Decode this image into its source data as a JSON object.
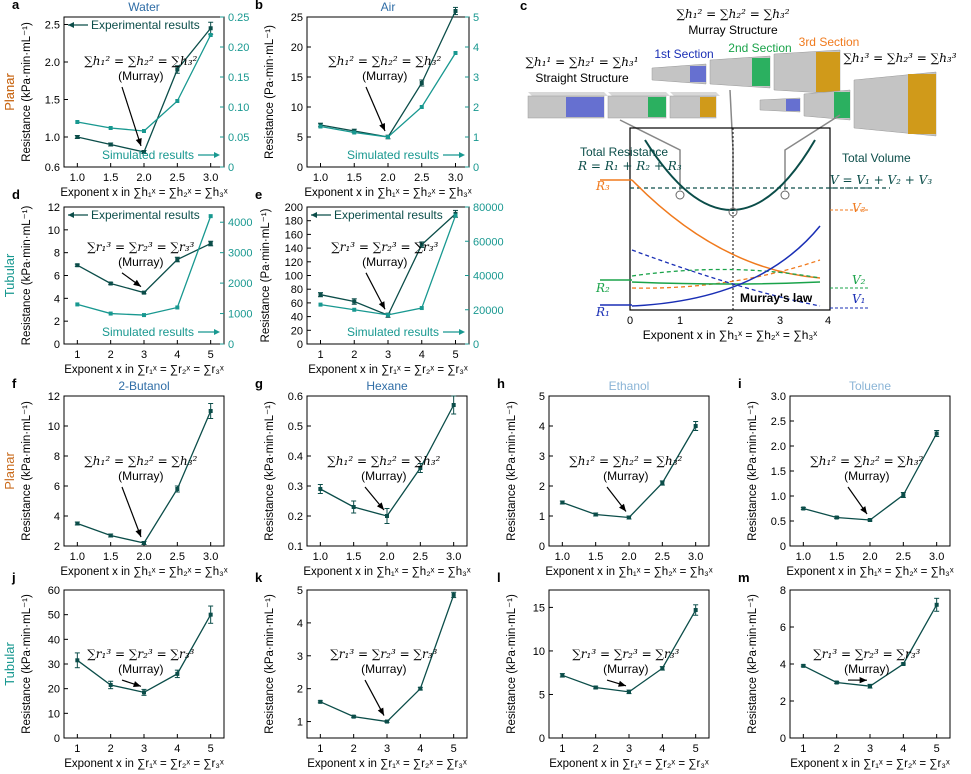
{
  "colors": {
    "dark": "#0b4d49",
    "light": "#189890",
    "planar": "#c96b1c",
    "tubular": "#189890",
    "title_blue": "#2f6da6",
    "title_light": "#8ab4d6",
    "orange": "#f07a1d",
    "green": "#1aa34a",
    "blue": "#1a2fb5",
    "darkgreen": "#0b4d49",
    "gray": "#888888"
  },
  "side_labels": {
    "planar": "Planar",
    "tubular": "Tubular"
  },
  "common": {
    "ylabel_kpa": "Resistance (kPa·min·mL⁻¹)",
    "ylabel_pa": "Resistance (Pa·min·mL⁻¹)",
    "xlabel_h": "Exponent x in ∑h₁ˣ = ∑h₂ˣ = ∑h₃ˣ",
    "xlabel_r": "Exponent x in ∑r₁ˣ = ∑r₂ˣ = ∑r₃ˣ",
    "murray_h": "∑h₁² = ∑h₂² = ∑h₃²",
    "murray_r": "∑r₁³ = ∑r₂³ = ∑r₃³",
    "murray": "(Murray)",
    "exp_label": "Experimental results",
    "sim_label": "Simulated results"
  },
  "chart_data": [
    {
      "id": "a",
      "type": "line",
      "title": "Water",
      "title_color": "title_blue",
      "side": "planar",
      "x": [
        1.0,
        1.5,
        2.0,
        2.5,
        3.0
      ],
      "xticks": [
        "1.0",
        "1.5",
        "2.0",
        "2.5",
        "3.0"
      ],
      "xlim": [
        0.8,
        3.2
      ],
      "xlabel": "h",
      "ylabel": "kpa",
      "ylim": [
        0.6,
        2.6
      ],
      "yticks": [
        "0.6",
        "1.0",
        "1.5",
        "2.0",
        "2.5"
      ],
      "yticks_v": [
        0.6,
        1.0,
        1.5,
        2.0,
        2.5
      ],
      "series": [
        {
          "name": "Experimental results",
          "axis": "left",
          "color": "dark",
          "values": [
            1.0,
            0.9,
            0.8,
            1.9,
            2.45
          ],
          "err": [
            0.02,
            0.02,
            0.02,
            0.05,
            0.08
          ]
        },
        {
          "name": "Simulated results",
          "axis": "right",
          "color": "light",
          "values": [
            0.075,
            0.065,
            0.06,
            0.11,
            0.22
          ]
        }
      ],
      "y2lim": [
        0,
        0.25
      ],
      "y2ticks": [
        "0",
        "0.05",
        "0.10",
        "0.15",
        "0.20",
        "0.25"
      ],
      "y2ticks_v": [
        0,
        0.05,
        0.1,
        0.15,
        0.2,
        0.25
      ],
      "murray": "h",
      "legend": true
    },
    {
      "id": "b",
      "type": "line",
      "title": "Air",
      "title_color": "title_blue",
      "side": "planar",
      "x": [
        1.0,
        1.5,
        2.0,
        2.5,
        3.0
      ],
      "xticks": [
        "1.0",
        "1.5",
        "2.0",
        "2.5",
        "3.0"
      ],
      "xlim": [
        0.8,
        3.2
      ],
      "xlabel": "h",
      "ylabel": "pa",
      "ylim": [
        0,
        25
      ],
      "yticks": [
        "0",
        "5",
        "10",
        "15",
        "20",
        "25"
      ],
      "yticks_v": [
        0,
        5,
        10,
        15,
        20,
        25
      ],
      "series": [
        {
          "name": "Experimental results",
          "axis": "left",
          "color": "dark",
          "values": [
            7,
            6,
            5,
            14,
            26
          ],
          "err": [
            0.3,
            0.3,
            0.3,
            0.5,
            0.6
          ]
        },
        {
          "name": "Simulated results",
          "axis": "right",
          "color": "light",
          "values": [
            1.35,
            1.15,
            1.0,
            2.0,
            3.8
          ]
        }
      ],
      "y2lim": [
        0,
        5
      ],
      "y2ticks": [
        "0",
        "1",
        "2",
        "3",
        "4",
        "5"
      ],
      "y2ticks_v": [
        0,
        1,
        2,
        3,
        4,
        5
      ],
      "murray": "h",
      "sim_only": true
    },
    {
      "id": "d",
      "type": "line",
      "title": "",
      "side": "tubular",
      "x": [
        1,
        2,
        3,
        4,
        5
      ],
      "xticks": [
        "1",
        "2",
        "3",
        "4",
        "5"
      ],
      "xlim": [
        0.6,
        5.4
      ],
      "xlabel": "r",
      "ylabel": "kpa",
      "ylim": [
        0,
        12
      ],
      "yticks": [
        "0",
        "2",
        "4",
        "6",
        "8",
        "10",
        "12"
      ],
      "yticks_v": [
        0,
        2,
        4,
        6,
        8,
        10,
        12
      ],
      "series": [
        {
          "name": "Experimental results",
          "axis": "left",
          "color": "dark",
          "values": [
            6.9,
            5.3,
            4.5,
            7.4,
            8.8
          ],
          "err": [
            0.1,
            0.1,
            0.1,
            0.2,
            0.2
          ]
        },
        {
          "name": "Simulated results",
          "axis": "right",
          "color": "light",
          "values": [
            1300,
            1000,
            950,
            1200,
            4200
          ]
        }
      ],
      "y2lim": [
        0,
        4500
      ],
      "y2ticks": [
        "0",
        "1000",
        "2000",
        "3000",
        "4000"
      ],
      "y2ticks_v": [
        0,
        1000,
        2000,
        3000,
        4000
      ],
      "murray": "r",
      "legend": true
    },
    {
      "id": "e",
      "type": "line",
      "title": "",
      "side": "",
      "x": [
        1,
        2,
        3,
        4,
        5
      ],
      "xticks": [
        "1",
        "2",
        "3",
        "4",
        "5"
      ],
      "xlim": [
        0.6,
        5.4
      ],
      "xlabel": "r",
      "ylabel": "pa",
      "ylim": [
        0,
        200
      ],
      "yticks": [
        "0",
        "20",
        "40",
        "60",
        "80",
        "100",
        "120",
        "140",
        "160",
        "180",
        "200"
      ],
      "yticks_v": [
        0,
        20,
        40,
        60,
        80,
        100,
        120,
        140,
        160,
        180,
        200
      ],
      "series": [
        {
          "name": "Experimental results",
          "axis": "left",
          "color": "dark",
          "values": [
            72,
            62,
            42,
            145,
            190
          ],
          "err": [
            3,
            4,
            3,
            4,
            5
          ]
        },
        {
          "name": "Simulated results",
          "axis": "right",
          "color": "light",
          "values": [
            23000,
            20000,
            17000,
            21000,
            75000
          ]
        }
      ],
      "y2lim": [
        0,
        80000
      ],
      "y2ticks": [
        "0",
        "20000",
        "40000",
        "60000",
        "80000"
      ],
      "y2ticks_v": [
        0,
        20000,
        40000,
        60000,
        80000
      ],
      "murray": "r",
      "legend": true
    },
    {
      "id": "f",
      "type": "line",
      "title": "2-Butanol",
      "title_color": "title_blue",
      "side": "planar",
      "x": [
        1.0,
        1.5,
        2.0,
        2.5,
        3.0
      ],
      "xticks": [
        "1.0",
        "1.5",
        "2.0",
        "2.5",
        "3.0"
      ],
      "xlim": [
        0.8,
        3.2
      ],
      "xlabel": "h",
      "ylabel": "kpa",
      "ylim": [
        2,
        12
      ],
      "yticks": [
        "2",
        "4",
        "6",
        "8",
        "10",
        "12"
      ],
      "yticks_v": [
        2,
        4,
        6,
        8,
        10,
        12
      ],
      "series": [
        {
          "name": "",
          "axis": "left",
          "color": "dark",
          "values": [
            3.5,
            2.7,
            2.2,
            5.8,
            11.0
          ],
          "err": [
            0.1,
            0.1,
            0.1,
            0.2,
            0.5
          ]
        }
      ],
      "murray": "h"
    },
    {
      "id": "g",
      "type": "line",
      "title": "Hexane",
      "title_color": "title_blue",
      "side": "",
      "x": [
        1.0,
        1.5,
        2.0,
        2.5,
        3.0
      ],
      "xticks": [
        "1.0",
        "1.5",
        "2.0",
        "2.5",
        "3.0"
      ],
      "xlim": [
        0.8,
        3.2
      ],
      "xlabel": "h",
      "ylabel": "kpa",
      "ylim": [
        0.1,
        0.6
      ],
      "yticks": [
        "0.1",
        "0.2",
        "0.3",
        "0.4",
        "0.5",
        "0.6"
      ],
      "yticks_v": [
        0.1,
        0.2,
        0.3,
        0.4,
        0.5,
        0.6
      ],
      "series": [
        {
          "name": "",
          "axis": "left",
          "color": "dark",
          "values": [
            0.29,
            0.23,
            0.2,
            0.36,
            0.57
          ],
          "err": [
            0.015,
            0.02,
            0.025,
            0.015,
            0.03
          ]
        }
      ],
      "murray": "h"
    },
    {
      "id": "h",
      "type": "line",
      "title": "Ethanol",
      "title_color": "title_light",
      "side": "",
      "x": [
        1.0,
        1.5,
        2.0,
        2.5,
        3.0
      ],
      "xticks": [
        "1.0",
        "1.5",
        "2.0",
        "2.5",
        "3.0"
      ],
      "xlim": [
        0.8,
        3.2
      ],
      "xlabel": "h",
      "ylabel": "kpa",
      "ylim": [
        0,
        5
      ],
      "yticks": [
        "0",
        "1",
        "2",
        "3",
        "4",
        "5"
      ],
      "yticks_v": [
        0,
        1,
        2,
        3,
        4,
        5
      ],
      "series": [
        {
          "name": "",
          "axis": "left",
          "color": "dark",
          "values": [
            1.45,
            1.05,
            0.95,
            2.1,
            4.0
          ],
          "err": [
            0.05,
            0.05,
            0.05,
            0.07,
            0.15
          ]
        }
      ],
      "murray": "h"
    },
    {
      "id": "i",
      "type": "line",
      "title": "Toluene",
      "title_color": "title_light",
      "side": "",
      "x": [
        1.0,
        1.5,
        2.0,
        2.5,
        3.0
      ],
      "xticks": [
        "1.0",
        "1.5",
        "2.0",
        "2.5",
        "3.0"
      ],
      "xlim": [
        0.8,
        3.2
      ],
      "xlabel": "h",
      "ylabel": "kpa",
      "ylim": [
        0,
        3.0
      ],
      "yticks": [
        "0",
        "0.5",
        "1.0",
        "1.5",
        "2.0",
        "2.5",
        "3.0"
      ],
      "yticks_v": [
        0,
        0.5,
        1.0,
        1.5,
        2.0,
        2.5,
        3.0
      ],
      "series": [
        {
          "name": "",
          "axis": "left",
          "color": "dark",
          "values": [
            0.75,
            0.57,
            0.52,
            1.02,
            2.25
          ],
          "err": [
            0.02,
            0.02,
            0.02,
            0.05,
            0.06
          ]
        }
      ],
      "murray": "h"
    },
    {
      "id": "j",
      "type": "line",
      "title": "",
      "side": "tubular",
      "x": [
        1,
        2,
        3,
        4,
        5
      ],
      "xticks": [
        "1",
        "2",
        "3",
        "4",
        "5"
      ],
      "xlim": [
        0.6,
        5.4
      ],
      "xlabel": "r",
      "ylabel": "kpa",
      "ylim": [
        0,
        60
      ],
      "yticks": [
        "0",
        "10",
        "20",
        "30",
        "40",
        "50",
        "60"
      ],
      "yticks_v": [
        0,
        10,
        20,
        30,
        40,
        50,
        60
      ],
      "series": [
        {
          "name": "",
          "axis": "left",
          "color": "dark",
          "values": [
            31.5,
            21.5,
            18.5,
            26.0,
            50.0
          ],
          "err": [
            3,
            1.5,
            1.2,
            1.5,
            3.5
          ]
        }
      ],
      "murray": "r"
    },
    {
      "id": "k",
      "type": "line",
      "title": "",
      "side": "",
      "x": [
        1,
        2,
        3,
        4,
        5
      ],
      "xticks": [
        "1",
        "2",
        "3",
        "4",
        "5"
      ],
      "xlim": [
        0.6,
        5.4
      ],
      "xlabel": "r",
      "ylabel": "kpa",
      "ylim": [
        0.5,
        5
      ],
      "yticks": [
        "1",
        "2",
        "3",
        "4",
        "5"
      ],
      "yticks_v": [
        1,
        2,
        3,
        4,
        5
      ],
      "series": [
        {
          "name": "",
          "axis": "left",
          "color": "dark",
          "values": [
            1.6,
            1.15,
            1.0,
            2.0,
            4.85
          ],
          "err": [
            0.03,
            0.03,
            0.03,
            0.04,
            0.08
          ]
        }
      ],
      "murray": "r"
    },
    {
      "id": "l",
      "type": "line",
      "title": "",
      "side": "",
      "x": [
        1,
        2,
        3,
        4,
        5
      ],
      "xticks": [
        "1",
        "2",
        "3",
        "4",
        "5"
      ],
      "xlim": [
        0.6,
        5.4
      ],
      "xlabel": "r",
      "ylabel": "kpa",
      "ylim": [
        0,
        17
      ],
      "yticks": [
        "0",
        "5",
        "10",
        "15"
      ],
      "yticks_v": [
        0,
        5,
        10,
        15
      ],
      "series": [
        {
          "name": "",
          "axis": "left",
          "color": "dark",
          "values": [
            7.2,
            5.8,
            5.3,
            8.0,
            14.7
          ],
          "err": [
            0.2,
            0.15,
            0.2,
            0.2,
            0.6
          ]
        }
      ],
      "murray": "r"
    },
    {
      "id": "m",
      "type": "line",
      "title": "",
      "side": "",
      "x": [
        1,
        2,
        3,
        4,
        5
      ],
      "xticks": [
        "1",
        "2",
        "3",
        "4",
        "5"
      ],
      "xlim": [
        0.6,
        5.4
      ],
      "xlabel": "r",
      "ylabel": "kpa",
      "ylim": [
        0,
        8
      ],
      "yticks": [
        "0",
        "2",
        "4",
        "6",
        "8"
      ],
      "yticks_v": [
        0,
        2,
        4,
        6,
        8
      ],
      "series": [
        {
          "name": "",
          "axis": "left",
          "color": "dark",
          "values": [
            3.9,
            3.0,
            2.8,
            4.0,
            7.2
          ],
          "err": [
            0.05,
            0.05,
            0.1,
            0.05,
            0.35
          ]
        }
      ],
      "murray": "r"
    }
  ],
  "panel_c": {
    "top_eq": "∑h₁² = ∑h₂² = ∑h₃²",
    "top_label": "Murray Structure",
    "left_eq": "∑h₁¹ = ∑h₂¹ = ∑h₃¹",
    "left_label": "Straight Structure",
    "right_eq": "∑h₁³ = ∑h₂³ = ∑h₃³",
    "sec1": "1st Section",
    "sec2": "2nd Section",
    "sec3": "3rd Section",
    "total_res": "Total Resistance",
    "res_eq": "R = R₁ + R₂ + R₃",
    "total_vol": "Total Volume",
    "vol_eq": "V = V₁ + V₂ + V₃",
    "R3": "R₃",
    "R2": "R₂",
    "R1": "R₁",
    "V3": "V₃",
    "V2": "V₂",
    "V1": "V₁",
    "law": "Murray's law",
    "xticks": [
      "0",
      "1",
      "2",
      "3",
      "4"
    ],
    "xlabel": "Exponent x in ∑h₁ˣ = ∑h₂ˣ = ∑h₃ˣ"
  }
}
